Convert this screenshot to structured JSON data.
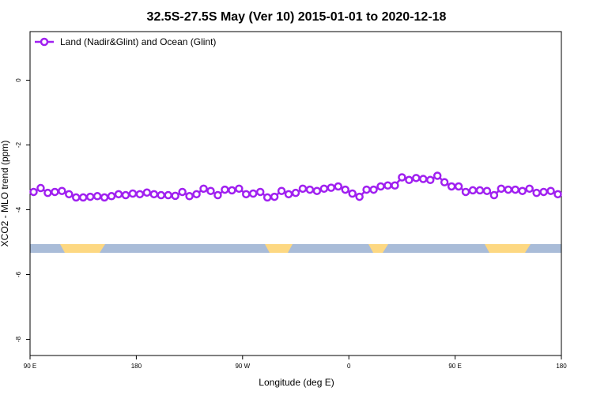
{
  "chart_data": {
    "type": "line",
    "title": "32.5S-27.5S May (Ver 10)   2015-01-01 to 2020-12-18",
    "xlabel": "Longitude (deg E)",
    "ylabel": "XCO2 - MLO trend (ppm)",
    "xlim": [
      90,
      540
    ],
    "ylim": [
      -8.5,
      1.5
    ],
    "xticks": [
      {
        "value": 90,
        "label": "90 E"
      },
      {
        "value": 180,
        "label": "180"
      },
      {
        "value": 270,
        "label": "90 W"
      },
      {
        "value": 360,
        "label": "0"
      },
      {
        "value": 450,
        "label": "90 E"
      },
      {
        "value": 540,
        "label": "180"
      }
    ],
    "yticks": [
      -8,
      -6,
      -4,
      -2,
      0
    ],
    "legend": "top-left",
    "x": [
      93,
      99,
      105,
      111,
      117,
      123,
      129,
      135,
      141,
      147,
      153,
      159,
      165,
      171,
      177,
      183,
      189,
      195,
      201,
      207,
      213,
      219,
      225,
      231,
      237,
      243,
      249,
      255,
      261,
      267,
      273,
      279,
      285,
      291,
      297,
      303,
      309,
      315,
      321,
      327,
      333,
      339,
      345,
      351,
      357,
      363,
      369,
      375,
      381,
      387,
      393,
      399,
      405,
      411,
      417,
      423,
      429,
      435,
      441,
      447,
      453,
      459,
      465,
      471,
      477,
      483,
      489,
      495,
      501,
      507,
      513,
      519,
      525,
      531,
      537
    ],
    "series": [
      {
        "name": "Land (Nadir&Glint) and Ocean (Glint)",
        "color": "#a020f0",
        "values": [
          -3.45,
          -3.33,
          -3.48,
          -3.45,
          -3.42,
          -3.52,
          -3.62,
          -3.62,
          -3.6,
          -3.58,
          -3.62,
          -3.58,
          -3.52,
          -3.55,
          -3.5,
          -3.52,
          -3.47,
          -3.52,
          -3.55,
          -3.55,
          -3.57,
          -3.45,
          -3.58,
          -3.52,
          -3.35,
          -3.42,
          -3.55,
          -3.38,
          -3.4,
          -3.35,
          -3.52,
          -3.5,
          -3.45,
          -3.62,
          -3.6,
          -3.42,
          -3.52,
          -3.48,
          -3.35,
          -3.38,
          -3.42,
          -3.35,
          -3.32,
          -3.28,
          -3.38,
          -3.5,
          -3.6,
          -3.38,
          -3.38,
          -3.28,
          -3.25,
          -3.25,
          -3.0,
          -3.08,
          -3.02,
          -3.05,
          -3.08,
          -2.95,
          -3.15,
          -3.28,
          -3.28,
          -3.45,
          -3.4,
          -3.4,
          -3.42,
          -3.55,
          -3.35,
          -3.38,
          -3.38,
          -3.42,
          -3.35,
          -3.48,
          -3.45,
          -3.42,
          -3.52
        ]
      }
    ]
  }
}
